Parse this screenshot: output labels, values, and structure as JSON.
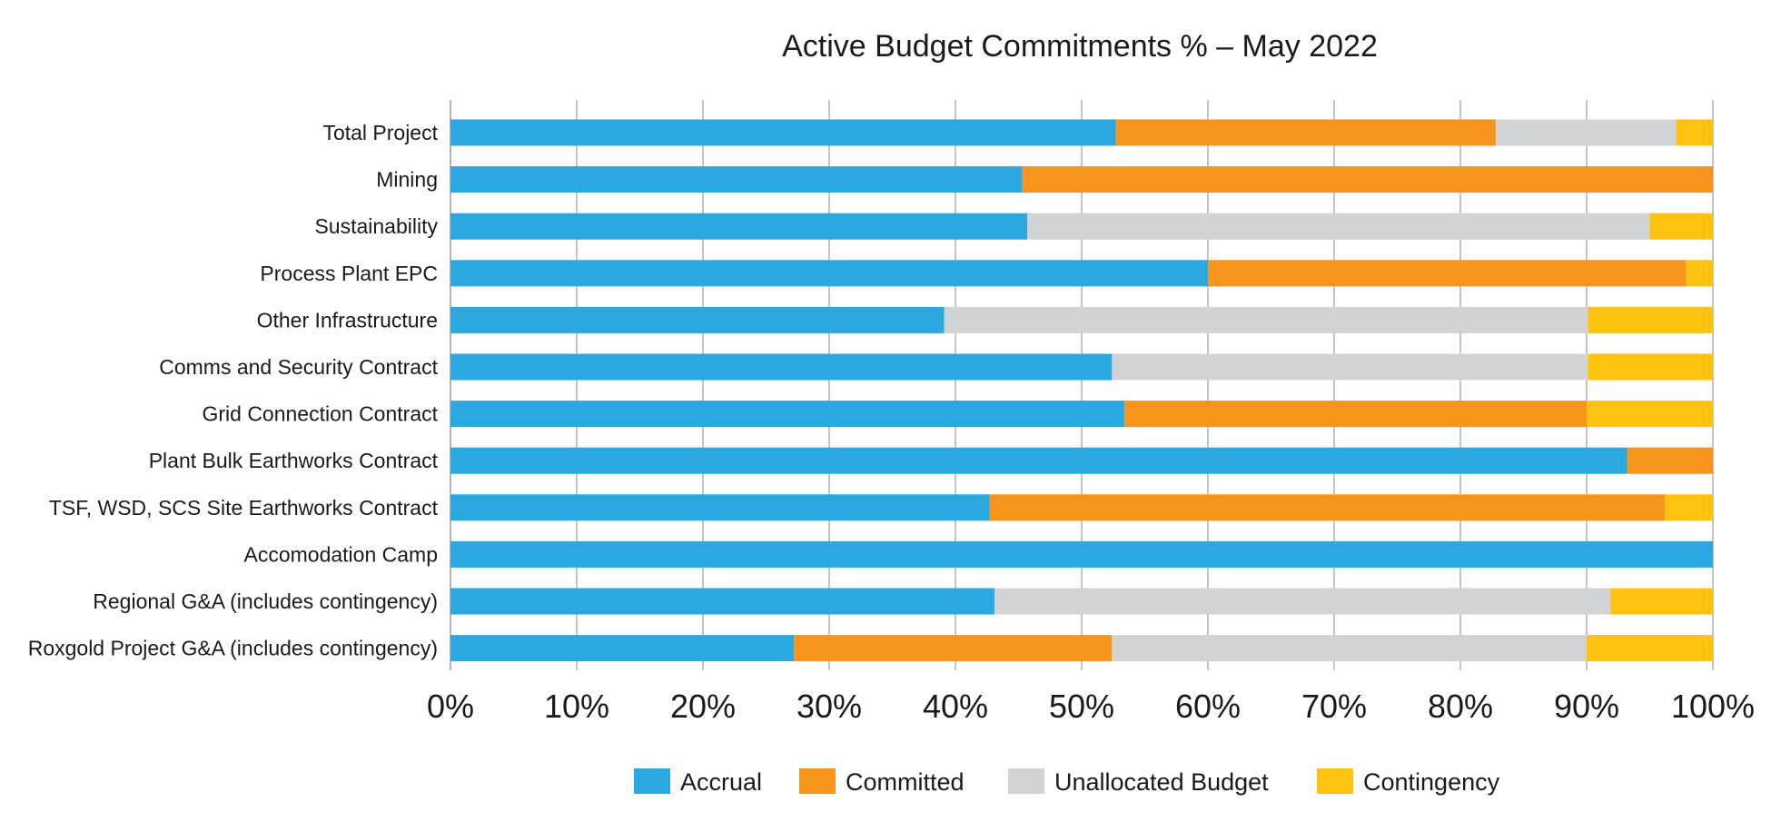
{
  "chart_data": {
    "type": "bar",
    "orientation": "horizontal",
    "stacked": true,
    "title": "Active Budget Commitments %  –  May 2022",
    "xlabel": "",
    "ylabel": "",
    "xlim": [
      0,
      100
    ],
    "x_ticks": [
      "0%",
      "10%",
      "20%",
      "30%",
      "40%",
      "50%",
      "60%",
      "70%",
      "80%",
      "90%",
      "100%"
    ],
    "grid": true,
    "legend_position": "bottom",
    "categories": [
      "Total Project",
      "Mining",
      "Sustainability",
      "Process Plant EPC",
      "Other Infrastructure",
      "Comms and Security Contract",
      "Grid Connection Contract",
      "Plant Bulk Earthworks Contract",
      "TSF, WSD, SCS Site Earthworks Contract",
      "Accomodation Camp",
      "Regional G&A (includes contingency)",
      "Roxgold Project G&A (includes contingency)"
    ],
    "series": [
      {
        "name": "Accrual",
        "color": "#29a9e0",
        "values": [
          52.7,
          45.3,
          45.7,
          60.0,
          39.1,
          52.4,
          53.4,
          93.2,
          42.7,
          100,
          43.1,
          27.2
        ]
      },
      {
        "name": "Committed",
        "color": "#f7941e",
        "values": [
          30.1,
          54.7,
          0,
          37.9,
          0,
          0,
          36.6,
          6.8,
          53.5,
          0,
          0,
          25.2
        ]
      },
      {
        "name": "Unallocated Budget",
        "color": "#d1d3d4",
        "values": [
          14.3,
          0,
          49.3,
          0,
          51.0,
          37.7,
          0,
          0,
          0,
          0,
          48.8,
          37.6
        ]
      },
      {
        "name": "Contingency",
        "color": "#ffc20e",
        "values": [
          2.9,
          0,
          5.0,
          2.1,
          9.9,
          9.9,
          10.0,
          0,
          3.8,
          0,
          8.1,
          10.0
        ]
      }
    ]
  }
}
